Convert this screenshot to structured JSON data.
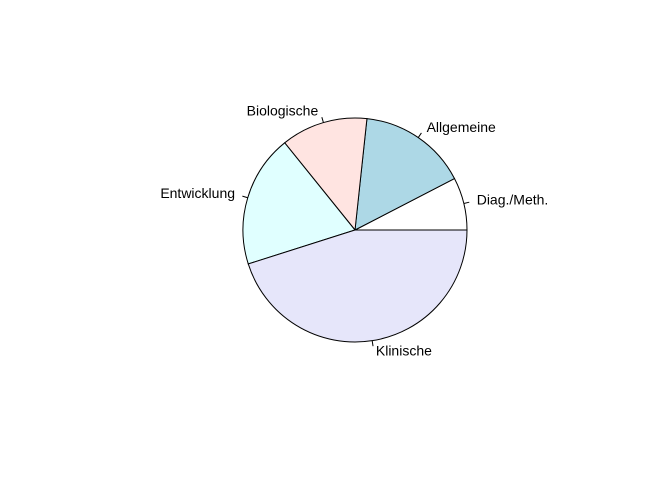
{
  "chart_data": {
    "type": "pie",
    "categories": [
      "Diag./Meth.",
      "Allgemeine",
      "Biologische",
      "Entwicklung",
      "Klinische"
    ],
    "values": [
      7.6,
      15.7,
      12.5,
      19.1,
      45.1
    ],
    "colors": [
      "#ffffff",
      "#add8e6",
      "#ffe4e1",
      "#e0ffff",
      "#e6e6fa"
    ]
  }
}
